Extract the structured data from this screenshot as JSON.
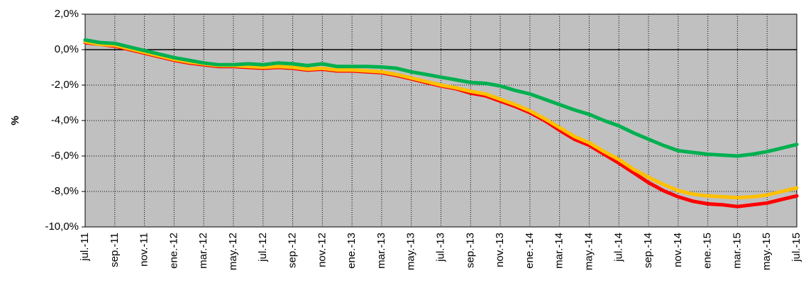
{
  "chart_data": {
    "type": "line",
    "title": "",
    "xlabel": "",
    "ylabel": "%",
    "ylim": [
      -10,
      2
    ],
    "y_ticks": [
      2,
      0,
      -2,
      -4,
      -6,
      -8,
      -10
    ],
    "y_tick_labels": [
      "2,0%",
      "0,0%",
      "-2,0%",
      "-4,0%",
      "-6,0%",
      "-8,0%",
      "-10,0%"
    ],
    "x_tick_labels": [
      "jul.-11",
      "sep.-11",
      "nov.-11",
      "ene.-12",
      "mar.-12",
      "may.-12",
      "jul.-12",
      "sep.-12",
      "nov.-12",
      "ene.-13",
      "mar.-13",
      "may.-13",
      "jul.-13",
      "sep.-13",
      "nov.-13",
      "ene.-14",
      "mar.-14",
      "may.-14",
      "jul.-14",
      "sep.-14",
      "nov.-14",
      "ene.-15",
      "mar.-15",
      "may.-15",
      "jul.-15"
    ],
    "grid": true,
    "plot_background": "#c0c0c0",
    "categories": [
      "jul.-11",
      "ago.-11",
      "sep.-11",
      "oct.-11",
      "nov.-11",
      "dic.-11",
      "ene.-12",
      "feb.-12",
      "mar.-12",
      "abr.-12",
      "may.-12",
      "jun.-12",
      "jul.-12",
      "ago.-12",
      "sep.-12",
      "oct.-12",
      "nov.-12",
      "dic.-12",
      "ene.-13",
      "feb.-13",
      "mar.-13",
      "abr.-13",
      "may.-13",
      "jun.-13",
      "jul.-13",
      "ago.-13",
      "sep.-13",
      "oct.-13",
      "nov.-13",
      "dic.-13",
      "ene.-14",
      "feb.-14",
      "mar.-14",
      "abr.-14",
      "may.-14",
      "jun.-14",
      "jul.-14",
      "ago.-14",
      "sep.-14",
      "oct.-14",
      "nov.-14",
      "dic.-14",
      "ene.-15",
      "feb.-15",
      "mar.-15",
      "abr.-15",
      "may.-15",
      "jun.-15",
      "jul.-15"
    ],
    "series": [
      {
        "color": "#ff0000",
        "values": [
          0.4,
          0.3,
          0.2,
          0.0,
          -0.2,
          -0.4,
          -0.6,
          -0.75,
          -0.85,
          -0.95,
          -0.95,
          -1.0,
          -1.05,
          -1.0,
          -1.05,
          -1.15,
          -1.1,
          -1.2,
          -1.2,
          -1.25,
          -1.3,
          -1.45,
          -1.65,
          -1.85,
          -2.05,
          -2.2,
          -2.45,
          -2.6,
          -2.9,
          -3.2,
          -3.55,
          -4.0,
          -4.55,
          -5.05,
          -5.4,
          -5.9,
          -6.4,
          -6.95,
          -7.5,
          -7.95,
          -8.3,
          -8.55,
          -8.7,
          -8.75,
          -8.85,
          -8.75,
          -8.65,
          -8.45,
          -8.25
        ]
      },
      {
        "color": "#ffc000",
        "values": [
          0.45,
          0.3,
          0.25,
          0.05,
          -0.15,
          -0.35,
          -0.55,
          -0.7,
          -0.8,
          -0.9,
          -0.9,
          -0.95,
          -1.0,
          -0.95,
          -1.0,
          -1.1,
          -1.05,
          -1.15,
          -1.15,
          -1.2,
          -1.25,
          -1.4,
          -1.6,
          -1.8,
          -2.0,
          -2.15,
          -2.35,
          -2.5,
          -2.8,
          -3.1,
          -3.45,
          -3.9,
          -4.4,
          -4.9,
          -5.25,
          -5.75,
          -6.2,
          -6.75,
          -7.2,
          -7.6,
          -7.95,
          -8.15,
          -8.25,
          -8.3,
          -8.35,
          -8.3,
          -8.2,
          -8.0,
          -7.8
        ]
      },
      {
        "color": "#00b050",
        "values": [
          0.55,
          0.4,
          0.35,
          0.15,
          -0.05,
          -0.25,
          -0.45,
          -0.6,
          -0.75,
          -0.85,
          -0.85,
          -0.8,
          -0.85,
          -0.75,
          -0.8,
          -0.9,
          -0.8,
          -0.95,
          -0.95,
          -0.95,
          -0.98,
          -1.05,
          -1.25,
          -1.4,
          -1.55,
          -1.7,
          -1.85,
          -1.9,
          -2.05,
          -2.3,
          -2.5,
          -2.8,
          -3.1,
          -3.4,
          -3.65,
          -4.0,
          -4.3,
          -4.7,
          -5.05,
          -5.4,
          -5.7,
          -5.8,
          -5.9,
          -5.95,
          -6.0,
          -5.9,
          -5.75,
          -5.55,
          -5.35
        ]
      }
    ]
  }
}
